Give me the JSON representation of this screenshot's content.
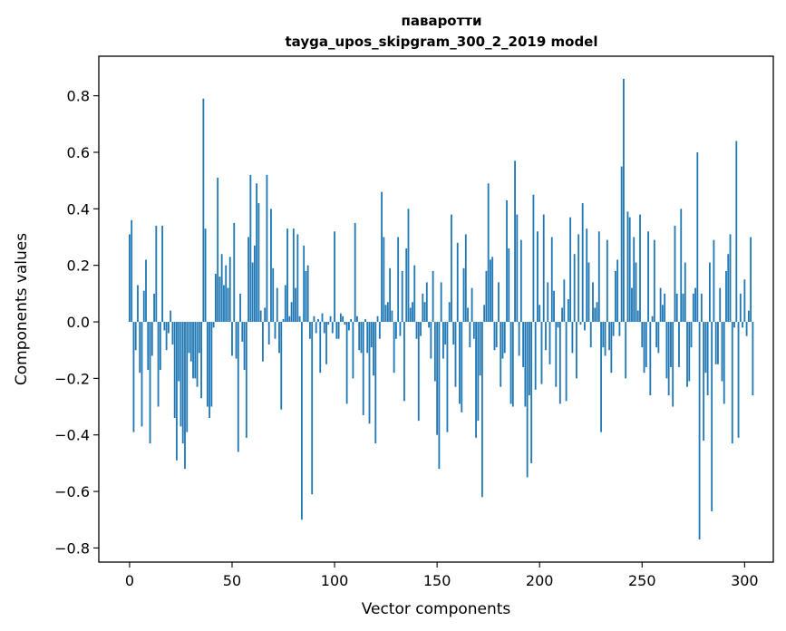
{
  "chart_data": {
    "type": "bar",
    "title": "паваротти",
    "subtitle": "tayga_upos_skipgram_300_2_2019 model",
    "xlabel": "Vector components",
    "ylabel": "Components values",
    "xlim": [
      -15,
      314
    ],
    "ylim": [
      -0.85,
      0.94
    ],
    "xticks": [
      0,
      50,
      100,
      150,
      200,
      250,
      300
    ],
    "xtick_labels": [
      "0",
      "50",
      "100",
      "150",
      "200",
      "250",
      "300"
    ],
    "yticks": [
      -0.8,
      -0.6,
      -0.4,
      -0.2,
      0.0,
      0.2,
      0.4,
      0.6,
      0.8
    ],
    "ytick_labels": [
      "−0.8",
      "−0.6",
      "−0.4",
      "−0.2",
      "0.0",
      "0.2",
      "0.4",
      "0.6",
      "0.8"
    ],
    "grid": false,
    "bar_color": "#1f77b4",
    "values": [
      0.31,
      0.36,
      -0.39,
      -0.1,
      0.13,
      -0.18,
      -0.37,
      0.11,
      0.22,
      -0.17,
      -0.43,
      -0.12,
      0.1,
      0.34,
      -0.3,
      -0.17,
      0.34,
      -0.03,
      -0.1,
      -0.04,
      0.04,
      -0.08,
      -0.34,
      -0.49,
      -0.21,
      -0.37,
      -0.43,
      -0.52,
      -0.39,
      -0.11,
      -0.14,
      -0.2,
      -0.2,
      -0.23,
      -0.11,
      -0.27,
      0.79,
      0.33,
      -0.3,
      -0.34,
      -0.3,
      -0.02,
      0.17,
      0.51,
      0.16,
      0.24,
      0.13,
      0.2,
      0.12,
      0.23,
      -0.12,
      0.35,
      -0.13,
      -0.46,
      0.1,
      -0.07,
      -0.17,
      -0.41,
      0.3,
      0.52,
      0.21,
      0.27,
      0.49,
      0.42,
      0.04,
      -0.14,
      0.05,
      0.52,
      -0.08,
      0.4,
      0.19,
      -0.06,
      0.12,
      -0.11,
      -0.31,
      0.01,
      0.13,
      0.33,
      0.02,
      0.07,
      0.33,
      0.12,
      0.31,
      0.02,
      -0.7,
      0.27,
      0.18,
      0.2,
      -0.06,
      -0.61,
      0.02,
      -0.04,
      0.01,
      -0.18,
      0.03,
      -0.04,
      -0.15,
      -0.01,
      0.02,
      -0.04,
      0.32,
      -0.06,
      -0.06,
      0.03,
      0.02,
      -0.01,
      -0.29,
      -0.03,
      0.01,
      -0.2,
      0.35,
      0.02,
      -0.1,
      -0.11,
      -0.33,
      0.01,
      -0.11,
      -0.36,
      -0.09,
      -0.19,
      -0.43,
      0.02,
      -0.06,
      0.46,
      0.3,
      0.06,
      0.07,
      0.19,
      0.04,
      -0.18,
      -0.06,
      0.3,
      -0.05,
      0.18,
      -0.28,
      0.26,
      0.4,
      0.05,
      0.07,
      0.2,
      -0.06,
      -0.35,
      -0.05,
      0.1,
      0.07,
      0.14,
      -0.02,
      -0.13,
      0.18,
      -0.21,
      -0.4,
      -0.52,
      0.14,
      -0.13,
      -0.08,
      -0.39,
      0.07,
      0.38,
      -0.08,
      -0.23,
      0.28,
      -0.29,
      -0.32,
      0.19,
      0.31,
      0.05,
      -0.09,
      0.12,
      -0.06,
      -0.41,
      -0.35,
      -0.19,
      -0.62,
      0.06,
      0.18,
      0.49,
      0.22,
      0.23,
      -0.1,
      -0.09,
      0.14,
      -0.23,
      -0.13,
      -0.11,
      0.43,
      0.26,
      -0.29,
      -0.3,
      0.57,
      0.38,
      -0.12,
      0.29,
      -0.16,
      -0.3,
      -0.55,
      -0.26,
      -0.5,
      0.45,
      -0.24,
      0.32,
      0.06,
      -0.22,
      0.38,
      -0.1,
      0.14,
      -0.15,
      0.3,
      0.11,
      -0.23,
      -0.02,
      -0.29,
      0.05,
      0.15,
      -0.28,
      0.08,
      0.37,
      -0.11,
      0.24,
      -0.2,
      0.31,
      -0.01,
      0.42,
      -0.03,
      0.33,
      0.21,
      -0.09,
      0.14,
      0.05,
      0.07,
      0.32,
      -0.39,
      -0.09,
      -0.12,
      0.29,
      -0.1,
      -0.18,
      -0.05,
      0.18,
      0.22,
      -0.05,
      0.55,
      0.86,
      -0.2,
      0.39,
      0.37,
      0.12,
      0.3,
      0.21,
      0.04,
      0.38,
      -0.09,
      -0.18,
      -0.16,
      0.32,
      -0.26,
      0.02,
      0.29,
      -0.09,
      -0.11,
      0.12,
      0.06,
      0.1,
      -0.2,
      -0.26,
      -0.16,
      -0.3,
      0.34,
      0.1,
      -0.16,
      0.4,
      0.1,
      0.21,
      -0.23,
      -0.21,
      -0.09,
      0.1,
      0.12,
      0.6,
      -0.77,
      0.1,
      -0.42,
      -0.18,
      -0.26,
      0.21,
      -0.67,
      0.29,
      -0.15,
      -0.15,
      0.12,
      -0.21,
      -0.29,
      0.18,
      0.24,
      0.31,
      -0.43,
      -0.02,
      0.64,
      -0.41,
      0.1,
      -0.02,
      0.15,
      -0.05,
      0.04,
      0.3,
      -0.26
    ]
  }
}
